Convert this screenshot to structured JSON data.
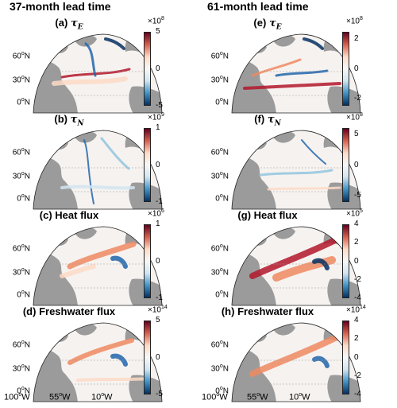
{
  "columns": [
    {
      "title": "37-month lead time"
    },
    {
      "title": "61-month lead time"
    }
  ],
  "lat_labels": [
    "60",
    "30",
    "0"
  ],
  "lat_unit": "°N",
  "lon_labels": [
    "100",
    "55",
    "10"
  ],
  "lon_unit": "°W",
  "colormap": {
    "negative": "#053061",
    "neutral": "#f7f7f7",
    "positive": "#67001f"
  },
  "chart_data": [
    {
      "type": "heatmap",
      "panel": "(a)",
      "variable": "τ",
      "subscript": "E",
      "title": "(a) τE",
      "lead_time": "37-month",
      "scale_base": "×10",
      "scale_exp": "8",
      "ticks": [
        "5",
        "0",
        "-5"
      ],
      "clim": [
        -5,
        5
      ]
    },
    {
      "type": "heatmap",
      "panel": "(b)",
      "variable": "τ",
      "subscript": "N",
      "title": "(b) τN",
      "lead_time": "37-month",
      "scale_base": "×10",
      "scale_exp": "9",
      "ticks": [
        "1",
        "0",
        "-1"
      ],
      "clim": [
        -1,
        1
      ]
    },
    {
      "type": "heatmap",
      "panel": "(c)",
      "variable": "Heat flux",
      "subscript": "",
      "title": "(c) Heat flux",
      "lead_time": "37-month",
      "scale_base": "×10",
      "scale_exp": "6",
      "ticks": [
        "1",
        "0",
        "-1"
      ],
      "clim": [
        -1,
        1
      ]
    },
    {
      "type": "heatmap",
      "panel": "(d)",
      "variable": "Freshwater flux",
      "subscript": "",
      "title": "(d) Freshwater flux",
      "lead_time": "37-month",
      "scale_base": "×10",
      "scale_exp": "14",
      "ticks": [
        "5",
        "0",
        "-5"
      ],
      "clim": [
        -5,
        5
      ]
    },
    {
      "type": "heatmap",
      "panel": "(e)",
      "variable": "τ",
      "subscript": "E",
      "title": "(e) τE",
      "lead_time": "61-month",
      "scale_base": "×10",
      "scale_exp": "8",
      "ticks": [
        "2",
        "0",
        "-2"
      ],
      "clim": [
        -2.5,
        2.5
      ]
    },
    {
      "type": "heatmap",
      "panel": "(f)",
      "variable": "τ",
      "subscript": "N",
      "title": "(f) τN",
      "lead_time": "61-month",
      "scale_base": "×10",
      "scale_exp": "8",
      "ticks": [
        "5",
        "0",
        "-5"
      ],
      "clim": [
        -6,
        6
      ]
    },
    {
      "type": "heatmap",
      "panel": "(g)",
      "variable": "Heat flux",
      "subscript": "",
      "title": "(g) Heat flux",
      "lead_time": "61-month",
      "scale_base": "×10",
      "scale_exp": "5",
      "ticks": [
        "4",
        "2",
        "0",
        "-2",
        "-4"
      ],
      "clim": [
        -4,
        4
      ]
    },
    {
      "type": "heatmap",
      "panel": "(h)",
      "variable": "Freshwater flux",
      "subscript": "",
      "title": "(h) Freshwater flux",
      "lead_time": "61-month",
      "scale_base": "×10",
      "scale_exp": "14",
      "ticks": [
        "4",
        "2",
        "0",
        "-2",
        "-4"
      ],
      "clim": [
        -4,
        4
      ]
    }
  ]
}
